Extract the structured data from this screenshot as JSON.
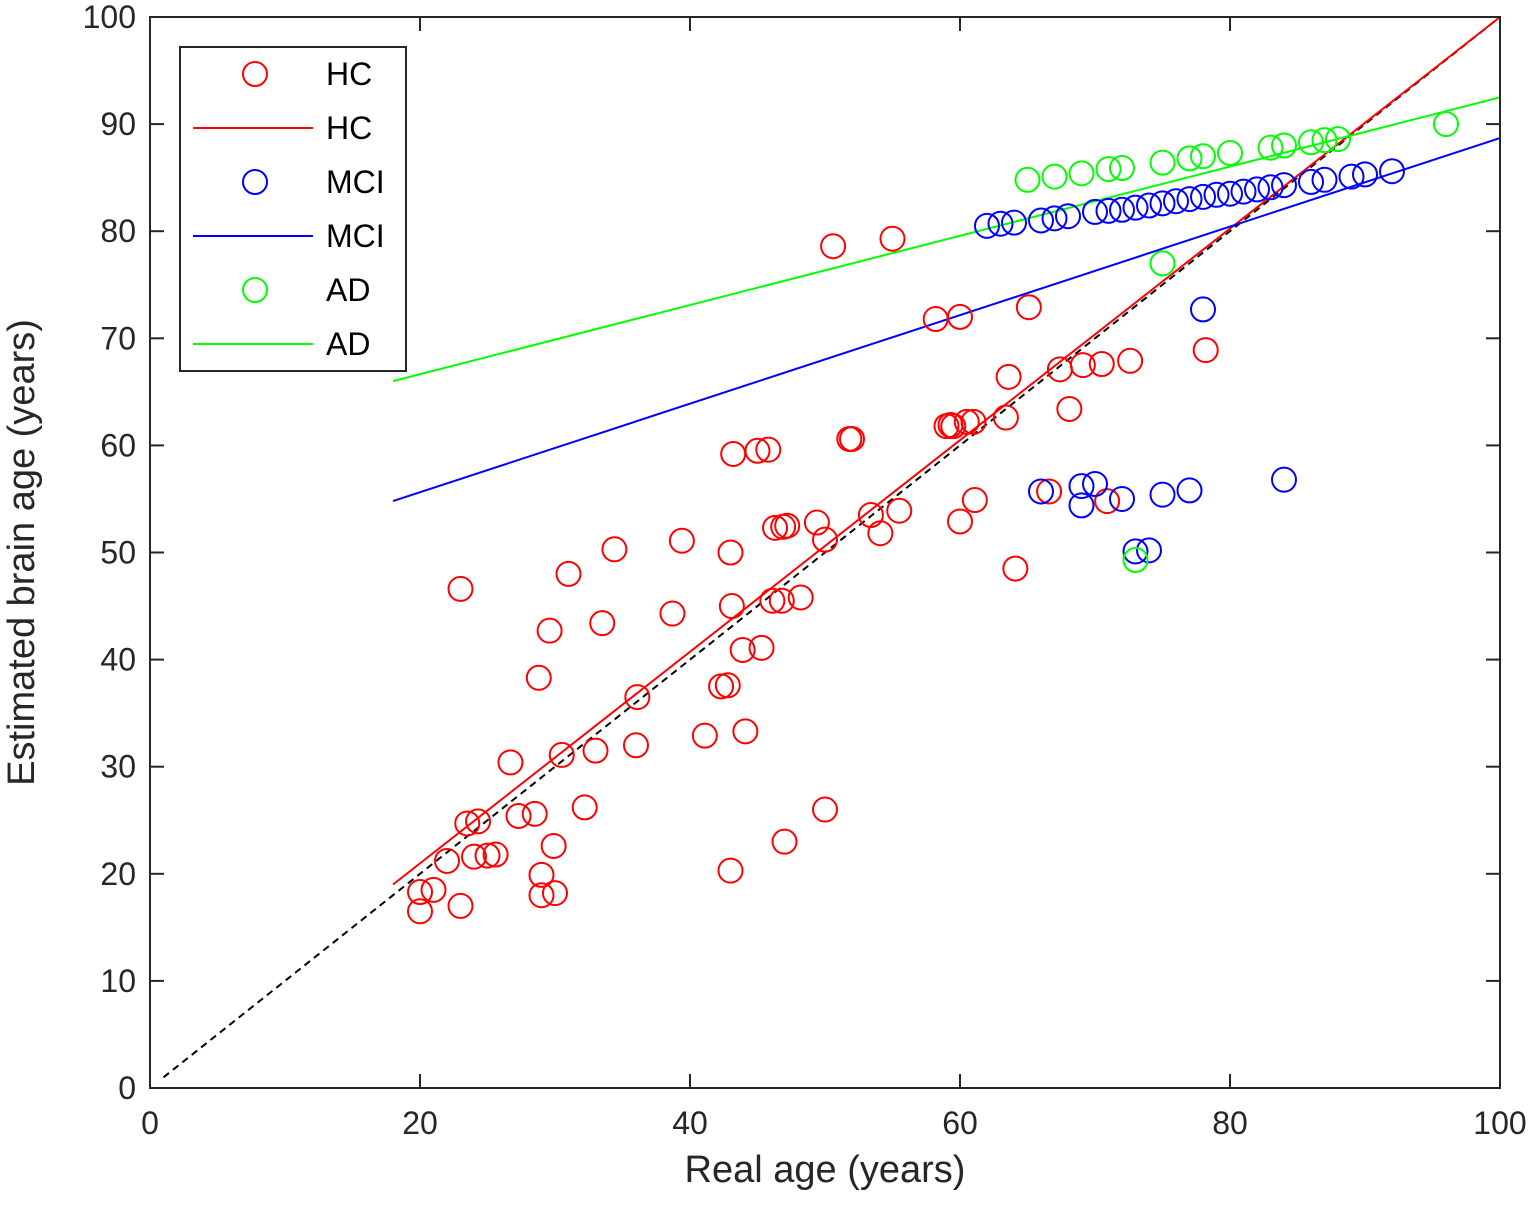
{
  "chart_data": {
    "type": "scatter",
    "xlabel": "Real age (years)",
    "ylabel": "Estimated brain age (years)",
    "xlim": [
      0,
      100
    ],
    "ylim": [
      0,
      100
    ],
    "xticks": [
      0,
      20,
      40,
      60,
      80,
      100
    ],
    "yticks": [
      0,
      10,
      20,
      30,
      40,
      50,
      60,
      70,
      80,
      90,
      100
    ],
    "grid": false,
    "legend_position": "top-left",
    "identity_line": {
      "x": [
        1,
        100
      ],
      "y": [
        1,
        100
      ],
      "color": "#000000",
      "style": "dashed"
    },
    "series": [
      {
        "name": "HC",
        "kind": "points",
        "color": "#ff0000",
        "points": [
          [
            20,
            16.5
          ],
          [
            20,
            18.3
          ],
          [
            21,
            18.5
          ],
          [
            22,
            21.2
          ],
          [
            23,
            17
          ],
          [
            23,
            46.6
          ],
          [
            23.5,
            24.7
          ],
          [
            24,
            21.6
          ],
          [
            24.3,
            24.9
          ],
          [
            25,
            21.7
          ],
          [
            25.6,
            21.8
          ],
          [
            26.7,
            30.4
          ],
          [
            27.3,
            25.4
          ],
          [
            28.5,
            25.6
          ],
          [
            28.8,
            38.3
          ],
          [
            29,
            18
          ],
          [
            29,
            19.9
          ],
          [
            29.6,
            42.7
          ],
          [
            29.9,
            22.6
          ],
          [
            30,
            18.2
          ],
          [
            30.5,
            31.1
          ],
          [
            31,
            48
          ],
          [
            32.2,
            26.2
          ],
          [
            33,
            31.5
          ],
          [
            33.5,
            43.4
          ],
          [
            34.4,
            50.3
          ],
          [
            36,
            32
          ],
          [
            36.1,
            36.5
          ],
          [
            38.7,
            44.3
          ],
          [
            39.4,
            51.1
          ],
          [
            41.1,
            32.9
          ],
          [
            42.3,
            37.5
          ],
          [
            42.8,
            37.6
          ],
          [
            43,
            20.3
          ],
          [
            43,
            50
          ],
          [
            43.1,
            45
          ],
          [
            43.2,
            59.2
          ],
          [
            43.9,
            40.9
          ],
          [
            44.1,
            33.3
          ],
          [
            45,
            59.5
          ],
          [
            45.3,
            41.1
          ],
          [
            45.8,
            59.6
          ],
          [
            46.1,
            45.5
          ],
          [
            46.3,
            52.3
          ],
          [
            46.8,
            45.5
          ],
          [
            46.9,
            52.4
          ],
          [
            47,
            23
          ],
          [
            47.2,
            52.5
          ],
          [
            48.2,
            45.8
          ],
          [
            49.4,
            52.8
          ],
          [
            50,
            26
          ],
          [
            50,
            51.2
          ],
          [
            50.6,
            78.6
          ],
          [
            51.8,
            60.6
          ],
          [
            52,
            60.6
          ],
          [
            53.4,
            53.5
          ],
          [
            54.1,
            51.8
          ],
          [
            55,
            79.3
          ],
          [
            55.5,
            53.9
          ],
          [
            58.2,
            71.8
          ],
          [
            59,
            61.8
          ],
          [
            59.3,
            61.9
          ],
          [
            59.5,
            61.8
          ],
          [
            60,
            52.9
          ],
          [
            60,
            72
          ],
          [
            60.5,
            62.2
          ],
          [
            61,
            62.2
          ],
          [
            61.1,
            54.9
          ],
          [
            63.4,
            62.6
          ],
          [
            63.6,
            66.4
          ],
          [
            64.1,
            48.5
          ],
          [
            65.1,
            72.9
          ],
          [
            66.6,
            55.7
          ],
          [
            67.4,
            67.1
          ],
          [
            68.1,
            63.4
          ],
          [
            69.1,
            67.5
          ],
          [
            70.5,
            67.6
          ],
          [
            70.9,
            54.8
          ],
          [
            72.6,
            67.9
          ],
          [
            78.2,
            68.9
          ]
        ]
      },
      {
        "name": "HC",
        "kind": "line",
        "color": "#ff0000",
        "x": [
          18,
          100
        ],
        "y": [
          19,
          100
        ]
      },
      {
        "name": "MCI",
        "kind": "points",
        "color": "#0000ff",
        "points": [
          [
            62,
            80.5
          ],
          [
            63,
            80.7
          ],
          [
            64,
            80.8
          ],
          [
            66,
            55.7
          ],
          [
            66,
            81
          ],
          [
            67,
            81.2
          ],
          [
            68,
            81.4
          ],
          [
            69,
            54.4
          ],
          [
            69,
            56.2
          ],
          [
            70,
            56.4
          ],
          [
            70,
            81.8
          ],
          [
            71,
            81.9
          ],
          [
            72,
            55
          ],
          [
            72,
            82
          ],
          [
            73,
            50.1
          ],
          [
            73,
            82.2
          ],
          [
            74,
            50.2
          ],
          [
            74,
            82.4
          ],
          [
            75,
            55.4
          ],
          [
            75,
            82.6
          ],
          [
            76,
            82.8
          ],
          [
            77,
            55.8
          ],
          [
            77,
            83
          ],
          [
            78,
            72.7
          ],
          [
            78,
            83.2
          ],
          [
            79,
            83.4
          ],
          [
            80,
            83.5
          ],
          [
            81,
            83.7
          ],
          [
            82,
            83.9
          ],
          [
            83,
            84.1
          ],
          [
            84,
            56.8
          ],
          [
            84,
            84.3
          ],
          [
            86,
            84.6
          ],
          [
            87,
            84.8
          ],
          [
            89,
            85.1
          ],
          [
            90,
            85.3
          ],
          [
            92,
            85.6
          ]
        ]
      },
      {
        "name": "MCI",
        "kind": "line",
        "color": "#0000ff",
        "x": [
          18,
          100
        ],
        "y": [
          54.8,
          88.7
        ]
      },
      {
        "name": "AD",
        "kind": "points",
        "color": "#00ff00",
        "points": [
          [
            65,
            84.8
          ],
          [
            67,
            85.1
          ],
          [
            69,
            85.4
          ],
          [
            71,
            85.8
          ],
          [
            72,
            85.9
          ],
          [
            73,
            49.3
          ],
          [
            75,
            77
          ],
          [
            75,
            86.4
          ],
          [
            77,
            86.8
          ],
          [
            78,
            87
          ],
          [
            80,
            87.3
          ],
          [
            83,
            87.8
          ],
          [
            84,
            88
          ],
          [
            86,
            88.3
          ],
          [
            87,
            88.5
          ],
          [
            88,
            88.6
          ],
          [
            96,
            90
          ]
        ]
      },
      {
        "name": "AD",
        "kind": "line",
        "color": "#00ff00",
        "x": [
          18,
          100
        ],
        "y": [
          66,
          92.5
        ]
      }
    ]
  }
}
